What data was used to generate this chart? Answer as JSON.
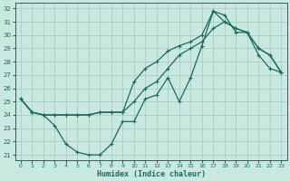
{
  "xlabel": "Humidex (Indice chaleur)",
  "xlim": [
    -0.5,
    23.5
  ],
  "ylim": [
    20.6,
    32.4
  ],
  "yticks": [
    21,
    22,
    23,
    24,
    25,
    26,
    27,
    28,
    29,
    30,
    31,
    32
  ],
  "xticks": [
    0,
    1,
    2,
    3,
    4,
    5,
    6,
    7,
    8,
    9,
    10,
    11,
    12,
    13,
    14,
    15,
    16,
    17,
    18,
    19,
    20,
    21,
    22,
    23
  ],
  "bg_color": "#c8e8e0",
  "grid_color": "#b0d4cc",
  "line_color": "#1a6b5a",
  "line1_x": [
    0,
    1,
    2,
    3,
    4,
    5,
    6,
    7,
    8,
    9,
    10,
    11,
    12,
    13,
    14,
    15,
    16,
    17,
    18,
    19,
    20,
    21,
    22,
    23
  ],
  "line1_y": [
    25.2,
    24.2,
    24.0,
    23.2,
    21.8,
    21.2,
    21.0,
    21.0,
    21.8,
    23.5,
    23.5,
    25.2,
    25.5,
    26.8,
    25.0,
    26.8,
    29.2,
    31.8,
    31.5,
    30.2,
    30.2,
    28.5,
    27.5,
    27.2
  ],
  "line2_x": [
    0,
    1,
    2,
    3,
    4,
    5,
    6,
    7,
    8,
    9,
    10,
    11,
    12,
    13,
    14,
    15,
    16,
    17,
    18,
    19,
    20,
    21,
    22,
    23
  ],
  "line2_y": [
    25.2,
    24.2,
    24.0,
    24.0,
    24.0,
    24.0,
    24.0,
    24.2,
    24.2,
    24.2,
    26.5,
    27.5,
    28.0,
    28.8,
    29.2,
    29.5,
    30.0,
    31.8,
    31.0,
    30.5,
    30.2,
    29.0,
    28.5,
    27.2
  ],
  "line3_x": [
    0,
    1,
    2,
    3,
    4,
    5,
    6,
    7,
    8,
    9,
    10,
    11,
    12,
    13,
    14,
    15,
    16,
    17,
    18,
    19,
    20,
    21,
    22,
    23
  ],
  "line3_y": [
    25.2,
    24.2,
    24.0,
    24.0,
    24.0,
    24.0,
    24.0,
    24.2,
    24.2,
    24.2,
    25.0,
    26.0,
    26.5,
    27.5,
    28.5,
    29.0,
    29.5,
    30.5,
    31.0,
    30.5,
    30.2,
    29.0,
    28.5,
    27.2
  ]
}
